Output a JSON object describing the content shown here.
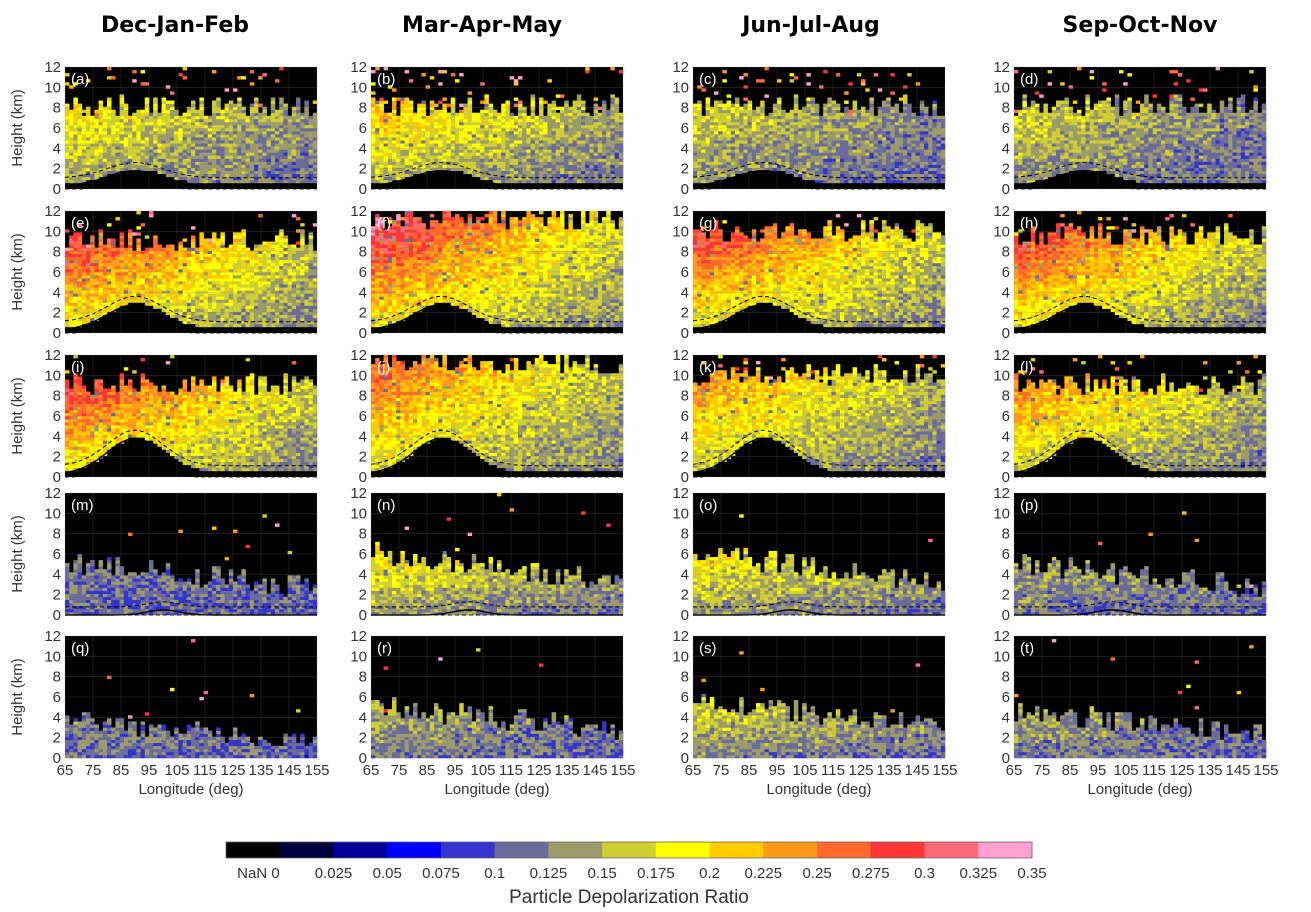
{
  "column_titles": [
    "Dec-Jan-Feb",
    "Mar-Apr-May",
    "Jun-Jul-Aug",
    "Sep-Oct-Nov"
  ],
  "colorbar": {
    "title": "Particle Depolarization Ratio",
    "tick_labels": [
      "NaN 0",
      "0.025",
      "0.05",
      "0.075",
      "0.1",
      "0.125",
      "0.15",
      "0.175",
      "0.2",
      "0.225",
      "0.25",
      "0.275",
      "0.3",
      "0.325",
      "0.35"
    ],
    "colors": [
      "#000000",
      "#00003f",
      "#00009a",
      "#0000ff",
      "#3434ce",
      "#6b6b9c",
      "#9c9c6b",
      "#cfcf34",
      "#ffff00",
      "#ffcc00",
      "#ff9a1a",
      "#ff6a2a",
      "#ff3434",
      "#ff6a7a",
      "#ffa0d0"
    ]
  },
  "chart_data": {
    "type": "heatmap",
    "xlabel": "Longitude (deg)",
    "ylabel": "Height (km)",
    "xlim": [
      65,
      155
    ],
    "ylim": [
      0,
      12
    ],
    "x_ticks": [
      65,
      75,
      85,
      95,
      105,
      115,
      125,
      135,
      145,
      155
    ],
    "y_ticks": [
      0,
      2,
      4,
      6,
      8,
      10,
      12
    ],
    "grid": true,
    "panel_labels": [
      "(a)",
      "(b)",
      "(c)",
      "(d)",
      "(e)",
      "(f)",
      "(g)",
      "(h)",
      "(i)",
      "(j)",
      "(k)",
      "(l)",
      "(m)",
      "(n)",
      "(o)",
      "(p)",
      "(q)",
      "(r)",
      "(s)",
      "(t)"
    ],
    "panels": [
      {
        "row": 0,
        "top_km": [
          8,
          8,
          8,
          8
        ],
        "peak_ratio": [
          0.2,
          0.225,
          0.175,
          0.175
        ],
        "terrain_km": 1.5
      },
      {
        "row": 1,
        "top_km": [
          9,
          11,
          10,
          9.5
        ],
        "peak_ratio": [
          0.3,
          0.325,
          0.3,
          0.3
        ],
        "terrain_km": 2.5
      },
      {
        "row": 2,
        "top_km": [
          9,
          11,
          10,
          9
        ],
        "peak_ratio": [
          0.3,
          0.275,
          0.25,
          0.25
        ],
        "terrain_km": 3.5
      },
      {
        "row": 3,
        "top_km": [
          5,
          6,
          6,
          5
        ],
        "peak_ratio": [
          0.125,
          0.2,
          0.2,
          0.15
        ],
        "terrain_km": 0.5
      },
      {
        "row": 4,
        "top_km": [
          3.5,
          5,
          5.5,
          4.5
        ],
        "peak_ratio": [
          0.125,
          0.15,
          0.175,
          0.15
        ],
        "terrain_km": 0.3
      }
    ]
  }
}
